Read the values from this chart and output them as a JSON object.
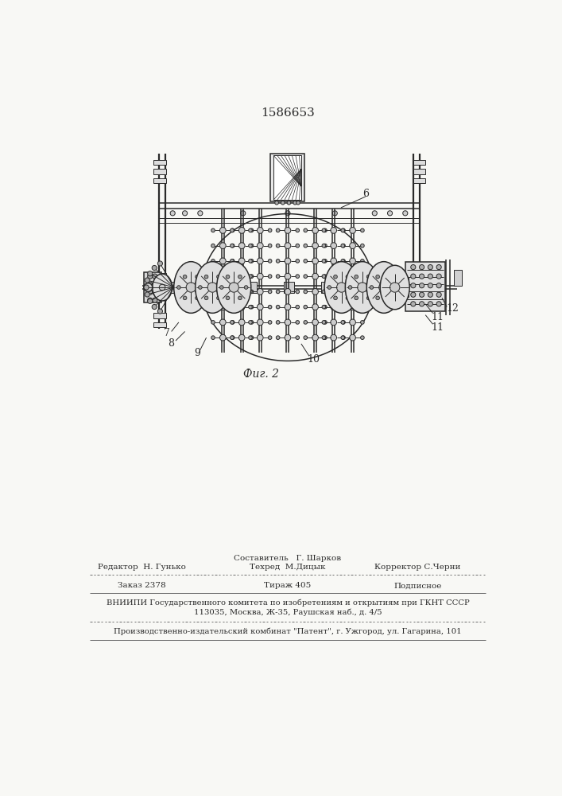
{
  "patent_number": "1586653",
  "fig_label": "Фиг. 2",
  "bg_color": "#f8f8f5",
  "line_color": "#2a2a2a",
  "footer": {
    "sostavitel": "Составитель   Г. Шарков",
    "redaktor": "Редактор  Н. Гунько",
    "tehred": "Техред  М.Дицык",
    "korrektor": "Корректор С.Черни",
    "zakaz": "Заказ 2378",
    "tirazh": "Тираж 405",
    "podpisnoe": "Подписное",
    "vniipи": "ВНИИПИ Государственного комитета по изобретениям и открытиям при ГКНТ СССР",
    "address": "113035, Москва, Ж-35, Раушская наб., д. 4/5",
    "proizv": "Производственно-издательский комбинат \"Патент\", г. Ужгород, ул. Гагарина, 101"
  }
}
